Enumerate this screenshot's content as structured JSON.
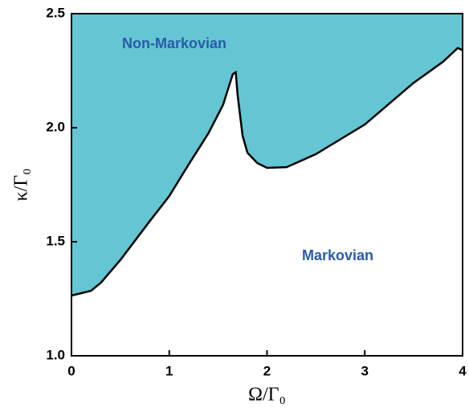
{
  "chart_data": {
    "type": "area",
    "fill": "above",
    "xlabel": "Ω/Γ₀",
    "ylabel": "κ/Γ₀",
    "annotations": [
      "Non-Markovian",
      "Markovian"
    ],
    "x": [
      0,
      0.2,
      0.3,
      0.5,
      0.8,
      1.0,
      1.2,
      1.4,
      1.55,
      1.65,
      1.68,
      1.7,
      1.75,
      1.8,
      1.9,
      2.0,
      2.2,
      2.5,
      3.0,
      3.5,
      3.8,
      3.95,
      4.0
    ],
    "series": [
      {
        "color": "#63c6d2",
        "line_color": "#000000",
        "values": [
          1.264,
          1.285,
          1.32,
          1.42,
          1.59,
          1.7,
          1.84,
          1.975,
          2.1,
          2.235,
          2.243,
          2.14,
          1.965,
          1.89,
          1.845,
          1.824,
          1.827,
          1.884,
          2.014,
          2.197,
          2.289,
          2.349,
          2.34
        ]
      }
    ],
    "xlim": [
      0,
      4
    ],
    "ylim": [
      1.0,
      2.5
    ],
    "xticks": [
      0,
      1,
      2,
      3,
      4
    ],
    "yticks": [
      {
        "value": 1.0,
        "label": "1.0"
      },
      {
        "value": 1.5,
        "label": "1.5"
      },
      {
        "value": 2.0,
        "label": "2.0"
      },
      {
        "value": 2.5,
        "label": "2.5"
      }
    ]
  }
}
